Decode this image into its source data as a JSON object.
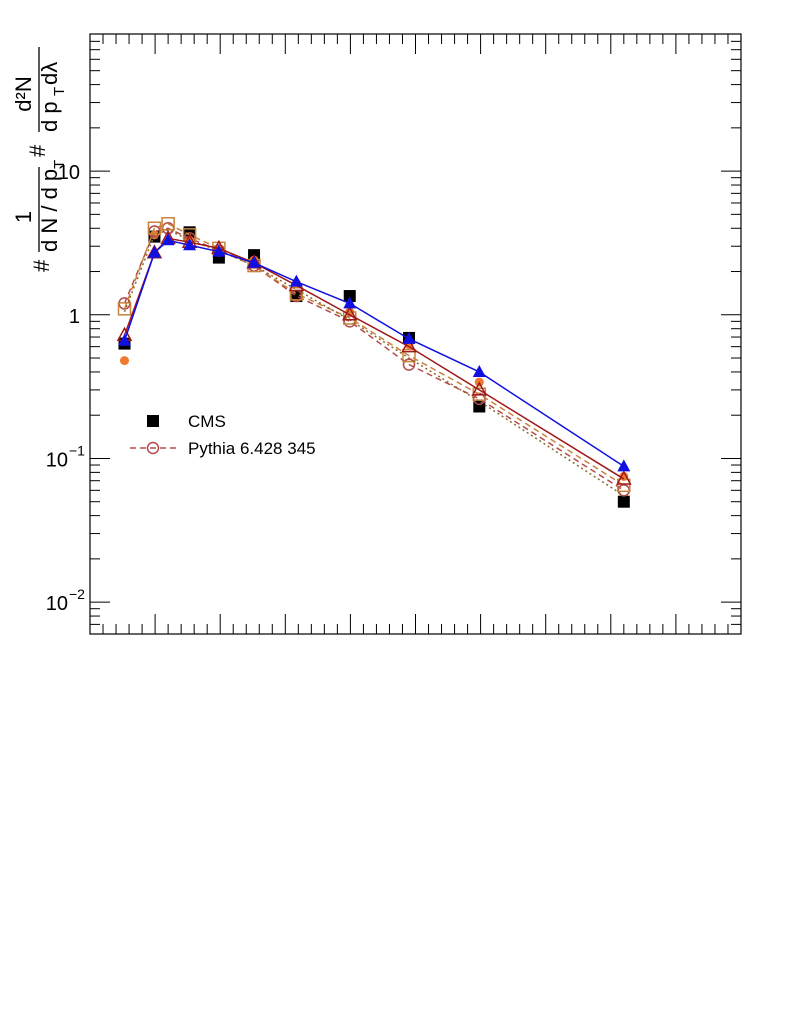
{
  "chart_data": {
    "type": "scatter",
    "title": "",
    "xlabel": "",
    "ylabel": {
      "num_frac": {
        "numerator": "1",
        "denominator": "d N / d p",
        "denominator_sub": "T"
      },
      "left_hash": "#",
      "mid_hash": "#",
      "second_frac": {
        "numerator": "d²N",
        "denominator": "d p",
        "denominator_sub": "T",
        "denominator_suffix": " dλ"
      }
    },
    "y_scale": "log",
    "ylim": [
      0.006,
      90
    ],
    "xlim": [
      0,
      1
    ],
    "grid": false,
    "y_ticks": [
      {
        "value": 10,
        "base": "10",
        "exp": ""
      },
      {
        "value": 1,
        "base": "1",
        "exp": ""
      },
      {
        "value": 0.1,
        "base": "10",
        "exp": "−1"
      },
      {
        "value": 0.01,
        "base": "10",
        "exp": "−2"
      }
    ],
    "legend": {
      "position": "middle-left",
      "entries": [
        {
          "label": "CMS",
          "marker": "square-filled",
          "color": "#000000",
          "line": "none"
        },
        {
          "label": "Pythia 6.428 345",
          "marker": "circle-open",
          "color": "#b34a4a",
          "line": "dashed"
        }
      ]
    },
    "series": [
      {
        "name": "CMS",
        "color": "#000000",
        "marker": "square-filled",
        "line": "none",
        "x": [
          0.053,
          0.099,
          0.153,
          0.198,
          0.252,
          0.317,
          0.399,
          0.49,
          0.598,
          0.82
        ],
        "y": [
          0.63,
          3.5,
          3.75,
          2.5,
          2.6,
          1.35,
          1.35,
          0.69,
          0.23,
          0.05
        ]
      },
      {
        "color": "#f07a30",
        "marker": "circle-filled",
        "line": "none",
        "x": [
          0.053,
          0.099,
          0.153,
          0.198,
          0.252,
          0.317,
          0.399,
          0.49,
          0.598,
          0.82
        ],
        "y": [
          0.48,
          3.6,
          3.3,
          2.8,
          2.4,
          1.65,
          1.05,
          0.62,
          0.34,
          0.075
        ]
      },
      {
        "color": "#b34a4a",
        "marker": "circle-open",
        "line": "dashed",
        "x": [
          0.053,
          0.099,
          0.12,
          0.153,
          0.198,
          0.252,
          0.317,
          0.399,
          0.49,
          0.598,
          0.82
        ],
        "y": [
          1.2,
          3.8,
          4.0,
          3.4,
          2.8,
          2.2,
          1.35,
          0.9,
          0.45,
          0.26,
          0.06
        ]
      },
      {
        "color": "#c8823c",
        "marker": "square-open",
        "line": "dashed",
        "x": [
          0.053,
          0.099,
          0.12,
          0.153,
          0.198,
          0.252,
          0.317,
          0.399,
          0.49,
          0.598,
          0.82
        ],
        "y": [
          1.1,
          4.0,
          4.3,
          3.6,
          2.9,
          2.2,
          1.4,
          0.95,
          0.52,
          0.28,
          0.065
        ]
      },
      {
        "color": "#8a6a2a",
        "marker": "none",
        "line": "dotted",
        "x": [
          0.053,
          0.099,
          0.12,
          0.153,
          0.198,
          0.252,
          0.317,
          0.399,
          0.49,
          0.598,
          0.82
        ],
        "y": [
          1.05,
          3.6,
          3.9,
          3.3,
          2.8,
          2.2,
          1.5,
          0.92,
          0.5,
          0.25,
          0.055
        ]
      },
      {
        "color": "#a01818",
        "marker": "triangle-open",
        "line": "solid",
        "x": [
          0.053,
          0.099,
          0.12,
          0.153,
          0.198,
          0.252,
          0.317,
          0.399,
          0.49,
          0.598,
          0.82
        ],
        "y": [
          0.72,
          2.7,
          3.4,
          3.2,
          2.9,
          2.3,
          1.6,
          1.0,
          0.6,
          0.3,
          0.072
        ]
      },
      {
        "color": "#1010e0",
        "marker": "triangle-filled",
        "line": "solid",
        "x": [
          0.053,
          0.099,
          0.12,
          0.153,
          0.198,
          0.252,
          0.317,
          0.399,
          0.49,
          0.598,
          0.82
        ],
        "y": [
          0.66,
          2.7,
          3.3,
          3.05,
          2.75,
          2.3,
          1.7,
          1.2,
          0.68,
          0.4,
          0.088
        ]
      }
    ]
  }
}
